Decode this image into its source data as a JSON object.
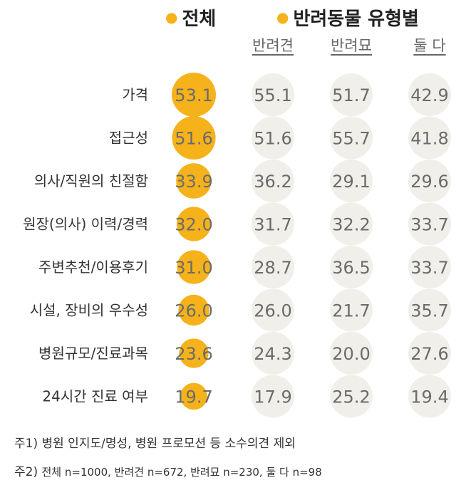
{
  "header": {
    "total_label": "전체",
    "type_label": "반려동물 유형별"
  },
  "columns": [
    "반려견",
    "반려묘",
    "둘 다"
  ],
  "chart_data": {
    "type": "table",
    "categories": [
      "가격",
      "접근성",
      "의사/직원의 친절함",
      "원장(의사) 이력/경력",
      "주변추천/이용후기",
      "시설, 장비의 우수성",
      "병원규모/진료과목",
      "24시간 진료 여부"
    ],
    "series": [
      {
        "name": "전체",
        "values": [
          "53.1",
          "51.6",
          "33.9",
          "32.0",
          "31.0",
          "26.0",
          "23.6",
          "19.7"
        ]
      },
      {
        "name": "반려견",
        "values": [
          "55.1",
          "51.6",
          "36.2",
          "31.7",
          "28.7",
          "26.0",
          "24.3",
          "17.9"
        ]
      },
      {
        "name": "반려묘",
        "values": [
          "51.7",
          "55.7",
          "29.1",
          "32.2",
          "36.5",
          "21.7",
          "20.0",
          "25.2"
        ]
      },
      {
        "name": "둘 다",
        "values": [
          "42.9",
          "41.8",
          "29.6",
          "33.7",
          "33.7",
          "35.7",
          "27.6",
          "19.4"
        ]
      }
    ],
    "highlight_color": "#f5b21a",
    "bubble_color": "#f1efea"
  },
  "notes": {
    "note1": "주1) 병원 인지도/명성, 병원 프로모션 등 소수의견 제외",
    "note2_prefix": "주2) ",
    "note2_body": "전체 n=1000, 반려견 n=672, 반려묘 n=230, 둘 다 n=98"
  }
}
